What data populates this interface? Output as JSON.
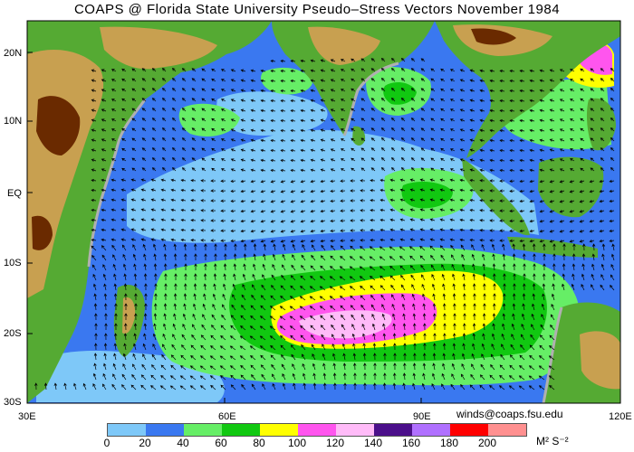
{
  "title": "COAPS @ Florida State University Pseudo–Stress Vectors  November 1984",
  "credit": "winds@coaps.fsu.edu",
  "units": "M² S⁻²",
  "latitude_labels": [
    "20N",
    "10N",
    "EQ",
    "10S",
    "20S",
    "30S"
  ],
  "longitude_labels": [
    "30E",
    "60E",
    "90E",
    "120E"
  ],
  "colorbar": {
    "ticks": [
      "0",
      "20",
      "40",
      "60",
      "80",
      "100",
      "120",
      "140",
      "160",
      "180",
      "200"
    ],
    "colors": [
      "#7ec8f8",
      "#3a78f0",
      "#66ee66",
      "#11c811",
      "#ffff00",
      "#ff55ee",
      "#ffbbf8",
      "#4b0f8a",
      "#b070ff",
      "#ff0000",
      "#ff9090"
    ]
  },
  "map_colors": {
    "ocean_light": "#7ec8f8",
    "ocean_mid": "#3a78f0",
    "land_low": "#55aa33",
    "land_mid": "#c8a050",
    "land_high": "#6a2a00",
    "shore": "#b0b0b0",
    "arrow": "#000000"
  }
}
